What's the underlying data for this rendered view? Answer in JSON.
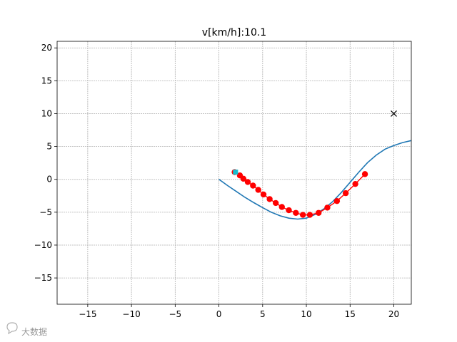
{
  "chart_data": {
    "type": "line",
    "title": "v[km/h]:10.1",
    "xlabel": "",
    "ylabel": "",
    "xlim": [
      -18.5,
      22
    ],
    "ylim": [
      -19,
      21
    ],
    "x_ticks": [
      -15,
      -10,
      -5,
      0,
      5,
      10,
      15,
      20
    ],
    "y_ticks": [
      -15,
      -10,
      -5,
      0,
      5,
      10,
      15,
      20
    ],
    "grid": true,
    "colors": {
      "path": "#1f77b4",
      "trajectory": "#ff0000",
      "current_position": "#17becf",
      "goal": "#000000",
      "grid": "#b0b0b0"
    },
    "series": [
      {
        "type": "line",
        "x": [
          0,
          1,
          2,
          3,
          4,
          5,
          6,
          7,
          8,
          9,
          10,
          11,
          12,
          13,
          14,
          15,
          16,
          17,
          18,
          19,
          20,
          21,
          22
        ],
        "y": [
          0,
          -0.95,
          -1.85,
          -2.75,
          -3.55,
          -4.3,
          -5.0,
          -5.55,
          -5.9,
          -6.05,
          -5.9,
          -5.35,
          -4.5,
          -3.4,
          -2.0,
          -0.45,
          1.1,
          2.55,
          3.7,
          4.6,
          5.15,
          5.6,
          5.9
        ]
      },
      {
        "type": "line-markers",
        "x": [
          2.4,
          2.8,
          3.3,
          3.9,
          4.5,
          5.1,
          5.8,
          6.5,
          7.2,
          8.0,
          8.8,
          9.6,
          10.4,
          11.4,
          12.4,
          13.5,
          14.5,
          15.6,
          16.7
        ],
        "y": [
          0.6,
          0.1,
          -0.4,
          -0.95,
          -1.6,
          -2.3,
          -3.0,
          -3.6,
          -4.2,
          -4.7,
          -5.1,
          -5.4,
          -5.4,
          -5.1,
          -4.3,
          -3.3,
          -2.1,
          -0.7,
          0.8
        ]
      },
      {
        "type": "marker",
        "marker": "circle",
        "x": [
          1.8
        ],
        "y": [
          1.1
        ]
      },
      {
        "type": "marker",
        "marker": "square",
        "x": [
          1.9
        ],
        "y": [
          1.1
        ]
      },
      {
        "type": "marker",
        "marker": "x",
        "x": [
          20
        ],
        "y": [
          10
        ]
      }
    ]
  },
  "watermark": {
    "icon": "chat-bubble-icon",
    "text": "大数据"
  }
}
